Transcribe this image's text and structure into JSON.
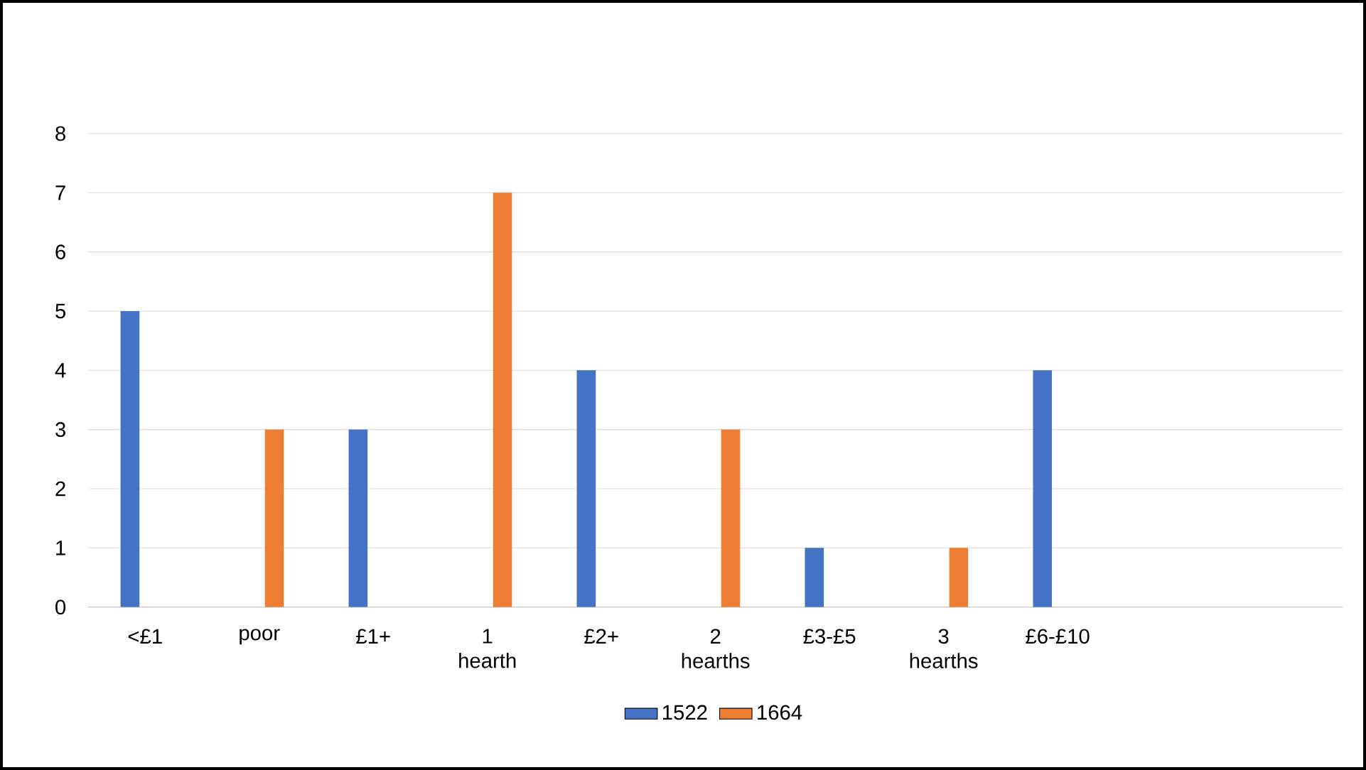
{
  "chart_data": {
    "type": "bar",
    "categories": [
      "<£1",
      "poor",
      "£1+",
      "1 hearth",
      "£2+",
      "2 hearths",
      "£3-£5",
      "3 hearths",
      "£6-£10",
      null,
      null
    ],
    "series": [
      {
        "name": "1522",
        "color": "#4472c4",
        "values": [
          5,
          null,
          3,
          null,
          4,
          null,
          1,
          null,
          4,
          null,
          null
        ]
      },
      {
        "name": "1664",
        "color": "#ed7d31",
        "values": [
          null,
          3,
          null,
          7,
          null,
          3,
          null,
          1,
          null,
          null,
          null
        ]
      }
    ],
    "ylim": [
      0,
      8
    ],
    "yticks": [
      0,
      1,
      2,
      3,
      4,
      5,
      6,
      7,
      8
    ],
    "grid": "y",
    "legend": "bottom"
  }
}
